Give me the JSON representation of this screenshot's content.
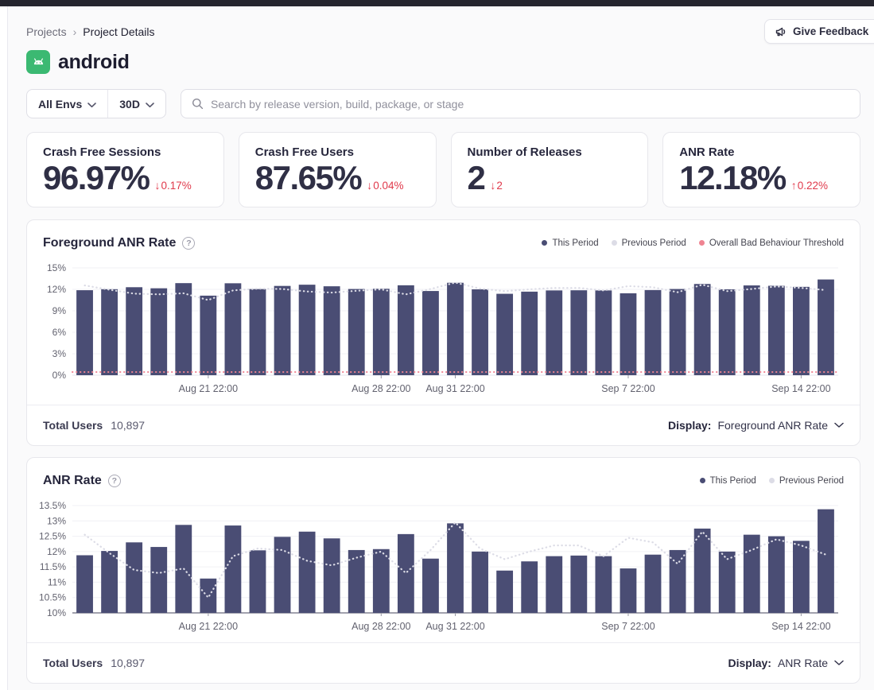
{
  "header": {
    "breadcrumb": {
      "items": [
        "Projects",
        "Project Details"
      ],
      "separator": "›"
    },
    "feedback_button": {
      "label": "Give Feedback",
      "icon": "megaphone-icon"
    },
    "project": {
      "name": "android",
      "icon": "android-icon",
      "icon_color": "#3bb972"
    }
  },
  "filters": {
    "env_dropdown": "All Envs",
    "range_dropdown": "30D",
    "search_placeholder": "Search by release version, build, package, or stage"
  },
  "metric_cards": [
    {
      "label": "Crash Free Sessions",
      "value": "96.97%",
      "arrow": "↓",
      "delta": "0.17%",
      "direction": "down"
    },
    {
      "label": "Crash Free Users",
      "value": "87.65%",
      "arrow": "↓",
      "delta": "0.04%",
      "direction": "down"
    },
    {
      "label": "Number of Releases",
      "value": "2",
      "arrow": "↓",
      "delta": "2",
      "direction": "down"
    },
    {
      "label": "ANR Rate",
      "value": "12.18%",
      "arrow": "↑",
      "delta": "0.22%",
      "direction": "up"
    }
  ],
  "colors": {
    "bar": "#4a4d74",
    "previous_period": "#dcdce6",
    "threshold": "#ef8492",
    "delta_red": "#e0394b",
    "grid": "#f0f0f5"
  },
  "chart_data": [
    {
      "type": "bar",
      "title": "Foreground ANR Rate",
      "legend": [
        {
          "label": "This Period",
          "color": "#4a4d74"
        },
        {
          "label": "Previous Period",
          "color": "#dcdce6"
        },
        {
          "label": "Overall Bad Behaviour Threshold",
          "color": "#ef8492"
        }
      ],
      "ylim": [
        0,
        15
      ],
      "yticks": [
        {
          "v": 0,
          "label": "0%"
        },
        {
          "v": 3,
          "label": "3%"
        },
        {
          "v": 6,
          "label": "6%"
        },
        {
          "v": 9,
          "label": "9%"
        },
        {
          "v": 12,
          "label": "12%"
        },
        {
          "v": 15,
          "label": "15%"
        }
      ],
      "x_ticks": [
        {
          "index": 5,
          "label": "Aug 21 22:00"
        },
        {
          "index": 12,
          "label": "Aug 28 22:00"
        },
        {
          "index": 15,
          "label": "Aug 31 22:00"
        },
        {
          "index": 22,
          "label": "Sep 7 22:00"
        },
        {
          "index": 29,
          "label": "Sep 14 22:00"
        }
      ],
      "bar_color": "#4a4d74",
      "prev_color": "#dcdce6",
      "threshold_color": "#ef8492",
      "threshold": 0.45,
      "axis_line": false,
      "grid": true,
      "legend_position": "top-right",
      "series": [
        {
          "name": "This Period",
          "render": "bar",
          "values": [
            11.88,
            12.02,
            12.3,
            12.15,
            12.87,
            11.12,
            12.85,
            12.04,
            12.48,
            12.65,
            12.43,
            12.05,
            12.08,
            12.57,
            11.77,
            12.92,
            12.0,
            11.38,
            11.68,
            11.85,
            11.87,
            11.85,
            11.45,
            11.9,
            12.05,
            12.75,
            12.0,
            12.55,
            12.5,
            12.35,
            13.38
          ]
        },
        {
          "name": "Previous Period",
          "render": "dotted_line",
          "values": [
            12.55,
            11.95,
            11.4,
            11.3,
            11.45,
            10.5,
            11.85,
            12.1,
            12.05,
            11.7,
            11.55,
            11.8,
            12.0,
            11.3,
            12.05,
            12.95,
            12.1,
            11.75,
            12.0,
            12.2,
            12.2,
            11.85,
            12.45,
            12.3,
            11.6,
            12.65,
            11.75,
            12.05,
            12.4,
            12.2,
            11.9
          ]
        },
        {
          "name": "Overall Bad Behaviour Threshold",
          "render": "dotted_hline",
          "value": 0.45
        }
      ],
      "footer": {
        "total_users_label": "Total Users",
        "total_users_value": "10,897",
        "display_label": "Display:",
        "display_value": "Foreground ANR Rate"
      }
    },
    {
      "type": "bar",
      "title": "ANR Rate",
      "legend": [
        {
          "label": "This Period",
          "color": "#4a4d74"
        },
        {
          "label": "Previous Period",
          "color": "#dcdce6"
        }
      ],
      "ylim": [
        10,
        13.5
      ],
      "yticks": [
        {
          "v": 10,
          "label": "10%"
        },
        {
          "v": 10.5,
          "label": "10.5%"
        },
        {
          "v": 11,
          "label": "11%"
        },
        {
          "v": 11.5,
          "label": "11.5%"
        },
        {
          "v": 12,
          "label": "12%"
        },
        {
          "v": 12.5,
          "label": "12.5%"
        },
        {
          "v": 13,
          "label": "13%"
        },
        {
          "v": 13.5,
          "label": "13.5%"
        }
      ],
      "x_ticks": [
        {
          "index": 5,
          "label": "Aug 21 22:00"
        },
        {
          "index": 12,
          "label": "Aug 28 22:00"
        },
        {
          "index": 15,
          "label": "Aug 31 22:00"
        },
        {
          "index": 22,
          "label": "Sep 7 22:00"
        },
        {
          "index": 29,
          "label": "Sep 14 22:00"
        }
      ],
      "bar_color": "#4a4d74",
      "prev_color": "#dcdce6",
      "threshold_color": null,
      "threshold": null,
      "axis_line": true,
      "grid": true,
      "legend_position": "top-right",
      "series": [
        {
          "name": "This Period",
          "render": "bar",
          "values": [
            11.88,
            12.02,
            12.3,
            12.15,
            12.87,
            11.12,
            12.85,
            12.04,
            12.48,
            12.65,
            12.43,
            12.05,
            12.08,
            12.57,
            11.77,
            12.92,
            12.0,
            11.38,
            11.68,
            11.85,
            11.87,
            11.85,
            11.45,
            11.9,
            12.05,
            12.75,
            12.0,
            12.55,
            12.5,
            12.35,
            13.38
          ]
        },
        {
          "name": "Previous Period",
          "render": "dotted_line",
          "values": [
            12.55,
            11.95,
            11.4,
            11.3,
            11.45,
            10.5,
            11.85,
            12.1,
            12.05,
            11.7,
            11.55,
            11.8,
            12.0,
            11.3,
            12.05,
            12.95,
            12.1,
            11.75,
            12.0,
            12.2,
            12.2,
            11.85,
            12.45,
            12.3,
            11.6,
            12.65,
            11.75,
            12.05,
            12.4,
            12.2,
            11.9
          ]
        }
      ],
      "footer": {
        "total_users_label": "Total Users",
        "total_users_value": "10,897",
        "display_label": "Display:",
        "display_value": "ANR Rate"
      }
    }
  ]
}
